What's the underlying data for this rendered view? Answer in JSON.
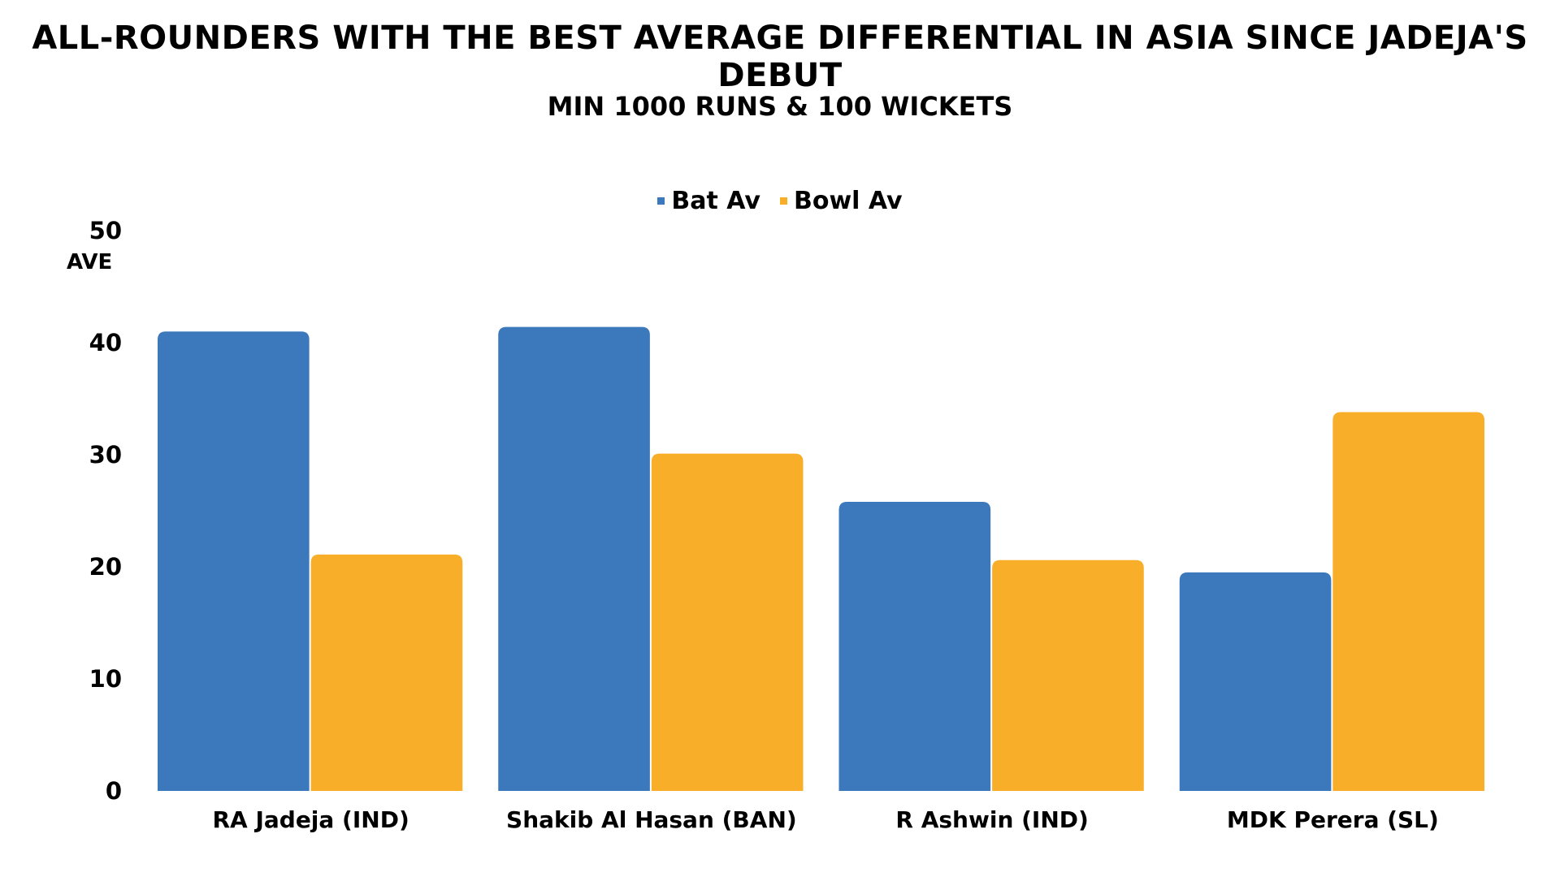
{
  "chart_data": {
    "type": "bar",
    "title": "All-Rounders with the best average differential in Asia since Jadeja's debut",
    "subtitle": "Min 1000 runs & 100 wickets",
    "ylabel": "AVE",
    "xlabel": "",
    "ylim": [
      0,
      50
    ],
    "yticks": [
      0,
      10,
      20,
      30,
      40,
      50
    ],
    "grid": false,
    "legend_position": "top-center",
    "categories": [
      "RA Jadeja (IND)",
      "Shakib Al Hasan (BAN)",
      "R Ashwin (IND)",
      "MDK Perera (SL)"
    ],
    "series": [
      {
        "name": "Bat Av",
        "color": "#3B78BC",
        "values": [
          41.0,
          41.4,
          25.8,
          19.5
        ]
      },
      {
        "name": "Bowl Av",
        "color": "#F8AE28",
        "values": [
          21.1,
          30.1,
          20.6,
          33.8
        ]
      }
    ]
  }
}
